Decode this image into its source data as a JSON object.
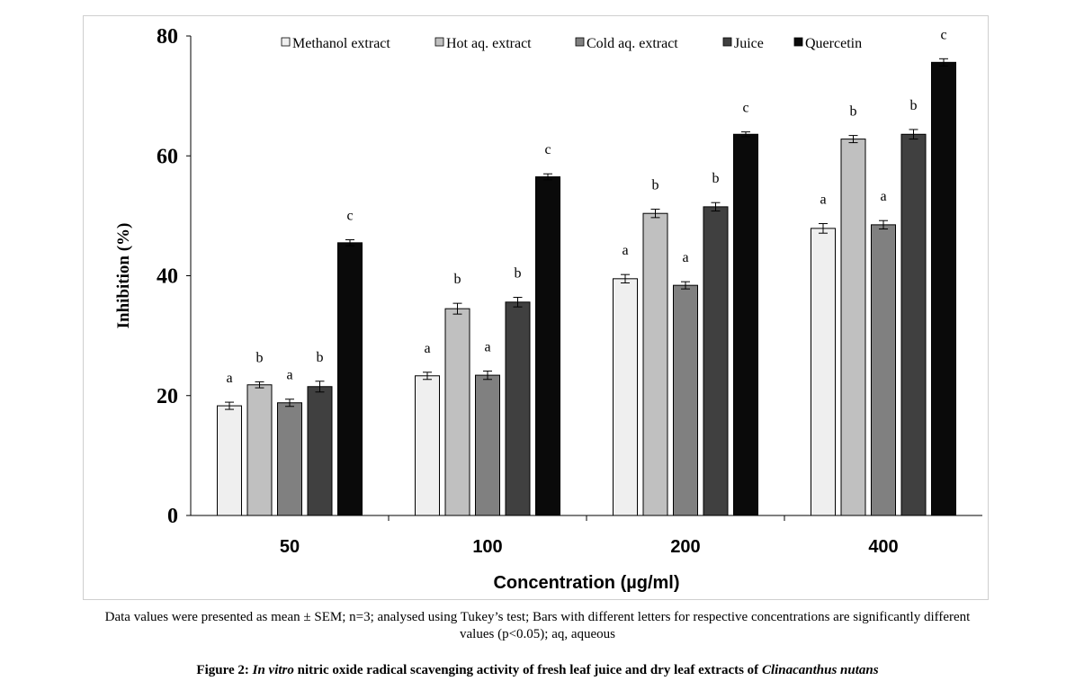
{
  "chart_data": {
    "type": "bar",
    "xlabel": "Concentration (µg/ml)",
    "ylabel": "Inhibition (%)",
    "ylim": [
      0,
      80
    ],
    "yticks": [
      0,
      20,
      40,
      60,
      80
    ],
    "grid": false,
    "legend_position": "top",
    "categories": [
      "50",
      "100",
      "200",
      "400"
    ],
    "series": [
      {
        "name": "Methanol extract",
        "color": "#efefef",
        "values": [
          18.3,
          23.3,
          39.5,
          47.9
        ],
        "errors": [
          0.6,
          0.6,
          0.7,
          0.8
        ],
        "letters": [
          "a",
          "a",
          "a",
          "a"
        ]
      },
      {
        "name": "Hot aq. extract",
        "color": "#c0c0c0",
        "values": [
          21.8,
          34.5,
          50.4,
          62.8
        ],
        "errors": [
          0.5,
          0.9,
          0.7,
          0.6
        ],
        "letters": [
          "b",
          "b",
          "b",
          "b"
        ]
      },
      {
        "name": "Cold aq. extract",
        "color": "#808080",
        "values": [
          18.8,
          23.4,
          38.4,
          48.5
        ],
        "errors": [
          0.6,
          0.7,
          0.6,
          0.7
        ],
        "letters": [
          "a",
          "a",
          "a",
          "a"
        ]
      },
      {
        "name": "Juice",
        "color": "#404040",
        "values": [
          21.5,
          35.6,
          51.5,
          63.6
        ],
        "errors": [
          0.9,
          0.8,
          0.7,
          0.8
        ],
        "letters": [
          "b",
          "b",
          "b",
          "b"
        ]
      },
      {
        "name": "Quercetin",
        "color": "#0a0a0a",
        "values": [
          45.5,
          56.5,
          63.6,
          75.6
        ],
        "errors": [
          0.5,
          0.5,
          0.4,
          0.6
        ],
        "letters": [
          "c",
          "c",
          "c",
          "c"
        ]
      }
    ]
  },
  "note_line1": "Data values were presented as mean ± SEM; n=3; analysed using Tukey’s test; Bars with different letters for respective concentrations are significantly different",
  "note_line2": "values (p<0.05); aq, aqueous",
  "caption": {
    "prefix": "Figure 2: ",
    "italic1": "In vitro",
    "middle": " nitric oxide radical scavenging activity of fresh leaf juice and dry leaf extracts of ",
    "italic2": "Clinacanthus nutans"
  }
}
